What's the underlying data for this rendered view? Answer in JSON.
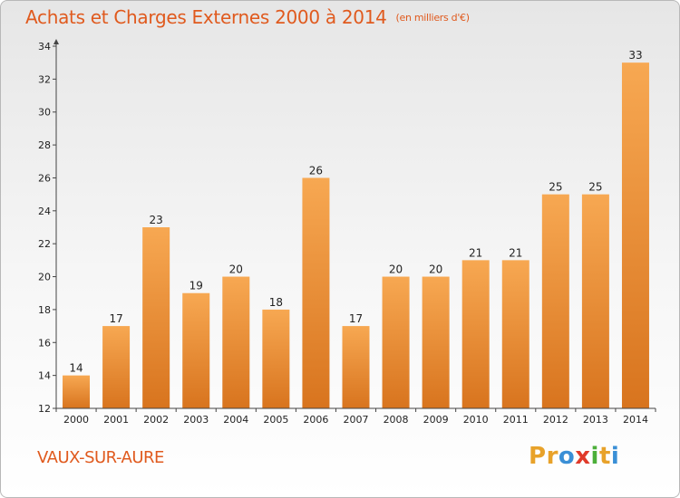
{
  "header": {
    "title": "Achats et Charges Externes 2000 à 2014",
    "unit": "(en milliers d'€)"
  },
  "footer": {
    "commune": "VAUX-SUR-AURE",
    "logo_letters": [
      "P",
      "r",
      "o",
      "x",
      "i",
      "t",
      "i"
    ],
    "logo_colors": [
      "#e8a22a",
      "#e8a22a",
      "#3a8fd6",
      "#e03a2a",
      "#4caf3a",
      "#e8a22a",
      "#3a8fd6"
    ]
  },
  "colors": {
    "accent": "#e05a1e",
    "bar_top": "#f7a852",
    "bar_bottom": "#d8741e"
  },
  "chart_data": {
    "type": "bar",
    "title": "Achats et Charges Externes 2000 à 2014",
    "unit": "(en milliers d'€)",
    "categories": [
      "2000",
      "2001",
      "2002",
      "2003",
      "2004",
      "2005",
      "2006",
      "2007",
      "2008",
      "2009",
      "2010",
      "2011",
      "2012",
      "2013",
      "2014"
    ],
    "values": [
      14,
      17,
      23,
      19,
      20,
      18,
      26,
      17,
      20,
      20,
      21,
      21,
      25,
      25,
      33
    ],
    "ylim": [
      12,
      34
    ],
    "yticks": [
      12,
      14,
      16,
      18,
      20,
      22,
      24,
      26,
      28,
      30,
      32,
      34
    ],
    "xlabel": "",
    "ylabel": "",
    "grid": false
  }
}
